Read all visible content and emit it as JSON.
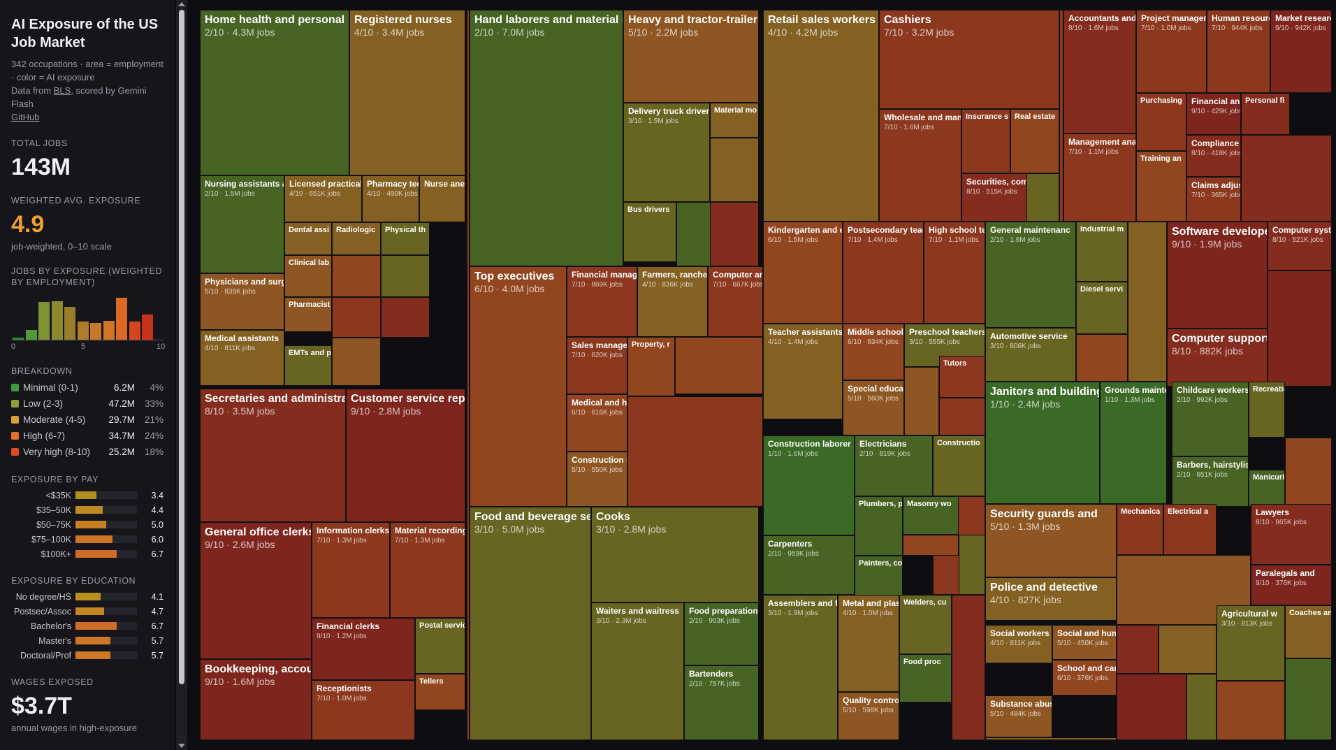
{
  "sidebar": {
    "title": "AI Exposure of the US Job Market",
    "subtitle_line": "342 occupations · area = employment · color = AI exposure",
    "source_prefix": "Data from ",
    "source_link": "BLS",
    "source_suffix": ", scored by Gemini Flash",
    "github_link": "GitHub",
    "total_jobs_label": "TOTAL JOBS",
    "total_jobs_value": "143M",
    "avg_label": "WEIGHTED AVG. EXPOSURE",
    "avg_value": "4.9",
    "avg_note": "job-weighted, 0–10 scale",
    "histogram_label": "JOBS BY EXPOSURE (WEIGHTED BY EMPLOYMENT)",
    "histogram": {
      "values": [
        0.6,
        3.3,
        12.4,
        12.8,
        10.9,
        6.0,
        5.5,
        6.2,
        13.9,
        6.0,
        8.4
      ],
      "colors": [
        "#2e8b2e",
        "#4f9a32",
        "#7f9330",
        "#8c8a2e",
        "#9a7e2c",
        "#b07a2a",
        "#c47a28",
        "#d07428",
        "#dc6a24",
        "#d4461e",
        "#c8321c"
      ],
      "axis_ticks": [
        "0",
        "5",
        "10"
      ]
    },
    "breakdown_label": "BREAKDOWN",
    "breakdown": [
      {
        "label": "Minimal (0-1)",
        "value": "6.2M",
        "pct": "4%",
        "color": "#3f9a3a"
      },
      {
        "label": "Low (2-3)",
        "value": "47.2M",
        "pct": "33%",
        "color": "#8fa033"
      },
      {
        "label": "Moderate (4-5)",
        "value": "29.7M",
        "pct": "21%",
        "color": "#d8a030"
      },
      {
        "label": "High (6-7)",
        "value": "34.7M",
        "pct": "24%",
        "color": "#e8702a"
      },
      {
        "label": "Very high (8-10)",
        "value": "25.2M",
        "pct": "18%",
        "color": "#e04a22"
      }
    ],
    "pay_label": "EXPOSURE BY PAY",
    "pay": [
      {
        "label": "<$35K",
        "value": "3.4",
        "fill": 0.34,
        "color": "#b0901e"
      },
      {
        "label": "$35–50K",
        "value": "4.4",
        "fill": 0.44,
        "color": "#c08a22"
      },
      {
        "label": "$50–75K",
        "value": "5.0",
        "fill": 0.5,
        "color": "#c88024"
      },
      {
        "label": "$75–100K",
        "value": "6.0",
        "fill": 0.6,
        "color": "#cc7426"
      },
      {
        "label": "$100K+",
        "value": "6.7",
        "fill": 0.67,
        "color": "#d06c26"
      }
    ],
    "edu_label": "EXPOSURE BY EDUCATION",
    "edu": [
      {
        "label": "No degree/HS",
        "value": "4.1",
        "fill": 0.41,
        "color": "#b8901e"
      },
      {
        "label": "Postsec/Assoc",
        "value": "4.7",
        "fill": 0.47,
        "color": "#c48622"
      },
      {
        "label": "Bachelor's",
        "value": "6.7",
        "fill": 0.67,
        "color": "#d06c26"
      },
      {
        "label": "Master's",
        "value": "5.7",
        "fill": 0.57,
        "color": "#cc7826"
      },
      {
        "label": "Doctoral/Prof",
        "value": "5.7",
        "fill": 0.57,
        "color": "#cc7826"
      }
    ],
    "wages_label": "WAGES EXPOSED",
    "wages_value": "$3.7T",
    "wages_note": "annual wages in high-exposure"
  },
  "treemap": {
    "tiles": [
      {
        "name": "Home health and personal",
        "score": 2,
        "jobs": "4.3M jobs"
      },
      {
        "name": "Registered nurses",
        "score": 4,
        "jobs": "3.4M jobs"
      },
      {
        "name": "Nursing assistants a",
        "score": 2,
        "jobs": "1.5M jobs"
      },
      {
        "name": "Licensed practical a",
        "score": 4,
        "jobs": "651K jobs"
      },
      {
        "name": "Pharmacy tech",
        "score": 4,
        "jobs": "490K jobs"
      },
      {
        "name": "Nurse ane",
        "score": 4,
        "jobs": ""
      },
      {
        "name": "Physicians and surge",
        "score": 5,
        "jobs": "839K jobs"
      },
      {
        "name": "Medical assistants",
        "score": 4,
        "jobs": "811K jobs"
      },
      {
        "name": "Dental assi",
        "score": 4,
        "jobs": ""
      },
      {
        "name": "Radiologic",
        "score": 4,
        "jobs": ""
      },
      {
        "name": "Physical th",
        "score": 3,
        "jobs": ""
      },
      {
        "name": "Clinical lab",
        "score": 5,
        "jobs": ""
      },
      {
        "name": "Pharmacist",
        "score": 5,
        "jobs": ""
      },
      {
        "name": "EMTs and p",
        "score": 3,
        "jobs": ""
      },
      {
        "name": "Secretaries and administra",
        "score": 8,
        "jobs": "3.5M jobs"
      },
      {
        "name": "Customer service repr",
        "score": 9,
        "jobs": "2.8M jobs"
      },
      {
        "name": "General office clerks",
        "score": 9,
        "jobs": "2.6M jobs"
      },
      {
        "name": "Information clerks",
        "score": 7,
        "jobs": "1.3M jobs"
      },
      {
        "name": "Material recording",
        "score": 7,
        "jobs": "1.3M jobs"
      },
      {
        "name": "Financial clerks",
        "score": 9,
        "jobs": "1.2M jobs"
      },
      {
        "name": "Postal servic",
        "score": 3,
        "jobs": ""
      },
      {
        "name": "Bookkeeping, accoun",
        "score": 9,
        "jobs": "1.6M jobs"
      },
      {
        "name": "Receptionists",
        "score": 7,
        "jobs": "1.0M jobs"
      },
      {
        "name": "Tellers",
        "score": 6,
        "jobs": ""
      },
      {
        "name": "Hand laborers and material m",
        "score": 2,
        "jobs": "7.0M jobs"
      },
      {
        "name": "Heavy and tractor-trailer",
        "score": 5,
        "jobs": "2.2M jobs"
      },
      {
        "name": "Delivery truck driver",
        "score": 3,
        "jobs": "1.5M jobs"
      },
      {
        "name": "Material mo",
        "score": 4,
        "jobs": ""
      },
      {
        "name": "Bus drivers",
        "score": 3,
        "jobs": ""
      },
      {
        "name": "Top executives",
        "score": 6,
        "jobs": "4.0M jobs"
      },
      {
        "name": "Financial manage",
        "score": 7,
        "jobs": "869K jobs"
      },
      {
        "name": "Farmers, rancher",
        "score": 4,
        "jobs": "836K jobs"
      },
      {
        "name": "Computer an",
        "score": 7,
        "jobs": "667K jobs"
      },
      {
        "name": "Sales manager",
        "score": 7,
        "jobs": "620K jobs"
      },
      {
        "name": "Property, r",
        "score": 6,
        "jobs": ""
      },
      {
        "name": "Medical and he",
        "score": 6,
        "jobs": "616K jobs"
      },
      {
        "name": "Construction m",
        "score": 5,
        "jobs": "550K jobs"
      },
      {
        "name": "Food and beverage se",
        "score": 3,
        "jobs": "5.0M jobs"
      },
      {
        "name": "Cooks",
        "score": 3,
        "jobs": "2.8M jobs"
      },
      {
        "name": "Waiters and waitress",
        "score": 3,
        "jobs": "2.3M jobs"
      },
      {
        "name": "Food preparation w",
        "score": 2,
        "jobs": "903K jobs"
      },
      {
        "name": "Bartenders",
        "score": 2,
        "jobs": "757K jobs"
      },
      {
        "name": "Retail sales workers",
        "score": 4,
        "jobs": "4.2M jobs"
      },
      {
        "name": "Cashiers",
        "score": 7,
        "jobs": "3.2M jobs"
      },
      {
        "name": "Wholesale and manu",
        "score": 7,
        "jobs": "1.6M jobs"
      },
      {
        "name": "Insurance s",
        "score": 7,
        "jobs": ""
      },
      {
        "name": "Real estate",
        "score": 6,
        "jobs": ""
      },
      {
        "name": "Securities, comm",
        "score": 8,
        "jobs": "515K jobs"
      },
      {
        "name": "Accountants and a",
        "score": 8,
        "jobs": "1.6M jobs"
      },
      {
        "name": "Project managem",
        "score": 7,
        "jobs": "1.0M jobs"
      },
      {
        "name": "Human resourc",
        "score": 7,
        "jobs": "944K jobs"
      },
      {
        "name": "Market research",
        "score": 9,
        "jobs": "942K jobs"
      },
      {
        "name": "Purchasing",
        "score": 7,
        "jobs": ""
      },
      {
        "name": "Financial anal",
        "score": 9,
        "jobs": "429K jobs"
      },
      {
        "name": "Personal fi",
        "score": 8,
        "jobs": ""
      },
      {
        "name": "Management ana",
        "score": 7,
        "jobs": "1.1M jobs"
      },
      {
        "name": "Compliance o",
        "score": 8,
        "jobs": "418K jobs"
      },
      {
        "name": "Training an",
        "score": 6,
        "jobs": ""
      },
      {
        "name": "Claims adjust",
        "score": 7,
        "jobs": "365K jobs"
      },
      {
        "name": "Kindergarten and el",
        "score": 6,
        "jobs": "1.5M jobs"
      },
      {
        "name": "Postsecondary teach",
        "score": 7,
        "jobs": "1.4M jobs"
      },
      {
        "name": "High school tea",
        "score": 7,
        "jobs": "1.1M jobs"
      },
      {
        "name": "Teacher assistants",
        "score": 4,
        "jobs": "1.4M jobs"
      },
      {
        "name": "Middle school",
        "score": 6,
        "jobs": "634K jobs"
      },
      {
        "name": "Preschool teachers",
        "score": 3,
        "jobs": "555K jobs"
      },
      {
        "name": "Tutors",
        "score": 7,
        "jobs": ""
      },
      {
        "name": "Special educat",
        "score": 5,
        "jobs": "560K jobs"
      },
      {
        "name": "General maintenanc",
        "score": 2,
        "jobs": "1.6M jobs"
      },
      {
        "name": "Industrial m",
        "score": 3,
        "jobs": ""
      },
      {
        "name": "Diesel servi",
        "score": 3,
        "jobs": ""
      },
      {
        "name": "Automotive service",
        "score": 3,
        "jobs": "806K jobs"
      },
      {
        "name": "Software developers",
        "score": 9,
        "jobs": "1.9M jobs"
      },
      {
        "name": "Computer syst",
        "score": 8,
        "jobs": "521K jobs"
      },
      {
        "name": "Computer support s",
        "score": 8,
        "jobs": "882K jobs"
      },
      {
        "name": "Construction laborer",
        "score": 1,
        "jobs": "1.6M jobs"
      },
      {
        "name": "Electricians",
        "score": 2,
        "jobs": "819K jobs"
      },
      {
        "name": "Constructio",
        "score": 3,
        "jobs": ""
      },
      {
        "name": "Plumbers, p",
        "score": 2,
        "jobs": ""
      },
      {
        "name": "Masonry wo",
        "score": 2,
        "jobs": ""
      },
      {
        "name": "Carpenters",
        "score": 2,
        "jobs": "959K jobs"
      },
      {
        "name": "Painters, co",
        "score": 2,
        "jobs": ""
      },
      {
        "name": "Janitors and building",
        "score": 1,
        "jobs": "2.4M jobs"
      },
      {
        "name": "Grounds mainte",
        "score": 1,
        "jobs": "1.3M jobs"
      },
      {
        "name": "Childcare workers",
        "score": 2,
        "jobs": "992K jobs"
      },
      {
        "name": "Recreation",
        "score": 3,
        "jobs": ""
      },
      {
        "name": "Barbers, hairstylists",
        "score": 2,
        "jobs": "651K jobs"
      },
      {
        "name": "Manicurist",
        "score": 2,
        "jobs": ""
      },
      {
        "name": "Assemblers and fa",
        "score": 3,
        "jobs": "1.9M jobs"
      },
      {
        "name": "Metal and plas",
        "score": 4,
        "jobs": "1.0M jobs"
      },
      {
        "name": "Welders, cu",
        "score": 3,
        "jobs": ""
      },
      {
        "name": "Food proc",
        "score": 2,
        "jobs": ""
      },
      {
        "name": "Quality control",
        "score": 5,
        "jobs": "598K jobs"
      },
      {
        "name": "Security guards and",
        "score": 5,
        "jobs": "1.3M jobs"
      },
      {
        "name": "Police and detective",
        "score": 4,
        "jobs": "827K jobs"
      },
      {
        "name": "Mechanica",
        "score": 7,
        "jobs": ""
      },
      {
        "name": "Electrical a",
        "score": 7,
        "jobs": ""
      },
      {
        "name": "Lawyers",
        "score": 8,
        "jobs": "865K jobs"
      },
      {
        "name": "Paralegals and",
        "score": 9,
        "jobs": "376K jobs"
      },
      {
        "name": "Agricultural w",
        "score": 3,
        "jobs": "813K jobs"
      },
      {
        "name": "Coaches and",
        "score": 4,
        "jobs": ""
      },
      {
        "name": "Social workers",
        "score": 4,
        "jobs": "811K jobs"
      },
      {
        "name": "Social and hum",
        "score": 5,
        "jobs": "450K jobs"
      },
      {
        "name": "School and car",
        "score": 6,
        "jobs": "376K jobs"
      },
      {
        "name": "Substance abus",
        "score": 5,
        "jobs": "484K jobs"
      }
    ],
    "filler_scores": [
      3,
      6,
      7,
      8,
      5,
      4,
      2,
      9,
      6,
      7,
      3,
      8,
      5,
      7,
      6,
      4,
      9,
      7,
      3,
      6,
      8,
      5,
      2,
      7,
      6,
      8,
      4,
      9,
      3,
      7,
      5,
      6,
      8,
      7,
      4,
      6
    ]
  }
}
